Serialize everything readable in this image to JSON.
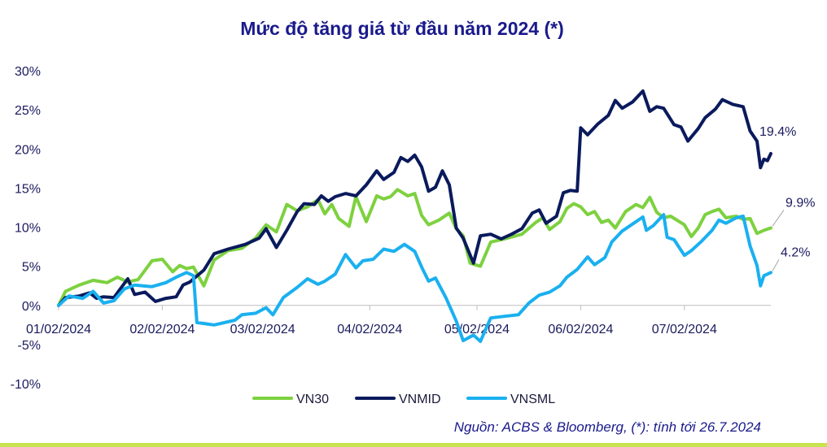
{
  "chart_data": {
    "type": "line",
    "title": "Mức độ tăng giá từ đầu năm 2024 (*)",
    "source": "Nguồn:  ACBS & Bloomberg, (*): tính tới 26.7.2024",
    "x_start": "2024-01-02",
    "x_end": "2024-07-26",
    "xticks": [
      {
        "date": "2024-01-02",
        "label": "01/02/2024"
      },
      {
        "date": "2024-02-01",
        "label": "02/02/2024"
      },
      {
        "date": "2024-03-01",
        "label": "03/02/2024"
      },
      {
        "date": "2024-04-01",
        "label": "04/02/2024"
      },
      {
        "date": "2024-05-02",
        "label": "05/02/2024"
      },
      {
        "date": "2024-06-01",
        "label": "06/02/2024"
      },
      {
        "date": "2024-07-01",
        "label": "07/02/2024"
      }
    ],
    "yticks": [
      {
        "value": 30,
        "label": "30%"
      },
      {
        "value": 25,
        "label": "25%"
      },
      {
        "value": 20,
        "label": "20%"
      },
      {
        "value": 15,
        "label": "15%"
      },
      {
        "value": 10,
        "label": "10%"
      },
      {
        "value": 5,
        "label": "5%"
      },
      {
        "value": 0,
        "label": "0%"
      },
      {
        "value": -5,
        "label": "-5%"
      },
      {
        "value": -10,
        "label": "-10%"
      }
    ],
    "ylim": [
      -10,
      30
    ],
    "legend_position": "bottom",
    "grid": false,
    "series": [
      {
        "name": "VN30",
        "color": "#7dd13f",
        "end_label": "9.9%",
        "points": [
          [
            "2024-01-02",
            0
          ],
          [
            "2024-01-04",
            1.8
          ],
          [
            "2024-01-08",
            2.6
          ],
          [
            "2024-01-12",
            3.2
          ],
          [
            "2024-01-16",
            2.9
          ],
          [
            "2024-01-19",
            3.6
          ],
          [
            "2024-01-22",
            3.0
          ],
          [
            "2024-01-25",
            3.3
          ],
          [
            "2024-01-29",
            5.7
          ],
          [
            "2024-02-01",
            5.9
          ],
          [
            "2024-02-04",
            4.3
          ],
          [
            "2024-02-06",
            5.1
          ],
          [
            "2024-02-08",
            4.7
          ],
          [
            "2024-02-10",
            4.9
          ],
          [
            "2024-02-13",
            2.5
          ],
          [
            "2024-02-16",
            5.8
          ],
          [
            "2024-02-20",
            7.0
          ],
          [
            "2024-02-24",
            7.3
          ],
          [
            "2024-02-28",
            8.6
          ],
          [
            "2024-03-02",
            10.3
          ],
          [
            "2024-03-05",
            9.4
          ],
          [
            "2024-03-08",
            12.9
          ],
          [
            "2024-03-11",
            12.1
          ],
          [
            "2024-03-14",
            12.6
          ],
          [
            "2024-03-17",
            13.5
          ],
          [
            "2024-03-19",
            11.7
          ],
          [
            "2024-03-21",
            12.9
          ],
          [
            "2024-03-23",
            11.1
          ],
          [
            "2024-03-26",
            10.1
          ],
          [
            "2024-03-28",
            13.9
          ],
          [
            "2024-03-31",
            10.7
          ],
          [
            "2024-04-03",
            14.0
          ],
          [
            "2024-04-05",
            13.6
          ],
          [
            "2024-04-07",
            13.9
          ],
          [
            "2024-04-09",
            14.8
          ],
          [
            "2024-04-12",
            14.0
          ],
          [
            "2024-04-14",
            14.3
          ],
          [
            "2024-04-16",
            11.5
          ],
          [
            "2024-04-18",
            10.3
          ],
          [
            "2024-04-21",
            10.9
          ],
          [
            "2024-04-24",
            11.8
          ],
          [
            "2024-04-26",
            9.8
          ],
          [
            "2024-04-28",
            8.9
          ],
          [
            "2024-04-30",
            5.4
          ],
          [
            "2024-05-03",
            5.0
          ],
          [
            "2024-05-06",
            8.1
          ],
          [
            "2024-05-10",
            8.5
          ],
          [
            "2024-05-15",
            9.1
          ],
          [
            "2024-05-19",
            10.6
          ],
          [
            "2024-05-21",
            11.2
          ],
          [
            "2024-05-23",
            9.7
          ],
          [
            "2024-05-26",
            10.7
          ],
          [
            "2024-05-28",
            12.4
          ],
          [
            "2024-05-30",
            13.0
          ],
          [
            "2024-06-01",
            12.6
          ],
          [
            "2024-06-03",
            11.6
          ],
          [
            "2024-06-05",
            12.0
          ],
          [
            "2024-06-07",
            10.6
          ],
          [
            "2024-06-09",
            10.9
          ],
          [
            "2024-06-11",
            9.9
          ],
          [
            "2024-06-14",
            12.0
          ],
          [
            "2024-06-17",
            12.9
          ],
          [
            "2024-06-19",
            12.5
          ],
          [
            "2024-06-21",
            13.8
          ],
          [
            "2024-06-23",
            11.9
          ],
          [
            "2024-06-25",
            11.2
          ],
          [
            "2024-06-27",
            11.4
          ],
          [
            "2024-07-01",
            10.3
          ],
          [
            "2024-07-03",
            8.8
          ],
          [
            "2024-07-05",
            9.9
          ],
          [
            "2024-07-07",
            11.6
          ],
          [
            "2024-07-09",
            12.0
          ],
          [
            "2024-07-11",
            12.3
          ],
          [
            "2024-07-13",
            11.2
          ],
          [
            "2024-07-16",
            11.4
          ],
          [
            "2024-07-18",
            11.0
          ],
          [
            "2024-07-20",
            11.1
          ],
          [
            "2024-07-22",
            9.2
          ],
          [
            "2024-07-24",
            9.6
          ],
          [
            "2024-07-26",
            9.9
          ]
        ]
      },
      {
        "name": "VNMID",
        "color": "#0a1a5c",
        "end_label": "19.4%",
        "points": [
          [
            "2024-01-02",
            0
          ],
          [
            "2024-01-04",
            1.0
          ],
          [
            "2024-01-08",
            1.2
          ],
          [
            "2024-01-11",
            1.6
          ],
          [
            "2024-01-13",
            0.9
          ],
          [
            "2024-01-15",
            1.1
          ],
          [
            "2024-01-18",
            1.0
          ],
          [
            "2024-01-22",
            3.4
          ],
          [
            "2024-01-24",
            1.4
          ],
          [
            "2024-01-27",
            1.7
          ],
          [
            "2024-01-30",
            0.5
          ],
          [
            "2024-02-02",
            0.9
          ],
          [
            "2024-02-05",
            1.1
          ],
          [
            "2024-02-07",
            2.6
          ],
          [
            "2024-02-09",
            3.0
          ],
          [
            "2024-02-13",
            4.5
          ],
          [
            "2024-02-16",
            6.6
          ],
          [
            "2024-02-20",
            7.2
          ],
          [
            "2024-02-25",
            7.8
          ],
          [
            "2024-02-29",
            8.6
          ],
          [
            "2024-03-02",
            9.8
          ],
          [
            "2024-03-05",
            7.4
          ],
          [
            "2024-03-08",
            9.6
          ],
          [
            "2024-03-11",
            12.0
          ],
          [
            "2024-03-13",
            13.0
          ],
          [
            "2024-03-16",
            12.9
          ],
          [
            "2024-03-18",
            14.0
          ],
          [
            "2024-03-20",
            13.3
          ],
          [
            "2024-03-22",
            13.9
          ],
          [
            "2024-03-25",
            14.3
          ],
          [
            "2024-03-28",
            14.0
          ],
          [
            "2024-03-31",
            15.4
          ],
          [
            "2024-04-03",
            17.2
          ],
          [
            "2024-04-05",
            16.1
          ],
          [
            "2024-04-08",
            17.0
          ],
          [
            "2024-04-10",
            18.9
          ],
          [
            "2024-04-12",
            18.4
          ],
          [
            "2024-04-14",
            19.2
          ],
          [
            "2024-04-16",
            17.7
          ],
          [
            "2024-04-18",
            14.6
          ],
          [
            "2024-04-20",
            15.1
          ],
          [
            "2024-04-22",
            17.2
          ],
          [
            "2024-04-24",
            15.4
          ],
          [
            "2024-04-26",
            9.9
          ],
          [
            "2024-04-28",
            8.6
          ],
          [
            "2024-05-01",
            5.4
          ],
          [
            "2024-05-03",
            8.9
          ],
          [
            "2024-05-06",
            9.1
          ],
          [
            "2024-05-09",
            8.5
          ],
          [
            "2024-05-12",
            9.1
          ],
          [
            "2024-05-15",
            9.8
          ],
          [
            "2024-05-18",
            11.8
          ],
          [
            "2024-05-20",
            12.2
          ],
          [
            "2024-05-22",
            10.5
          ],
          [
            "2024-05-25",
            11.4
          ],
          [
            "2024-05-27",
            14.4
          ],
          [
            "2024-05-29",
            14.7
          ],
          [
            "2024-05-31",
            14.6
          ],
          [
            "2024-06-01",
            22.7
          ],
          [
            "2024-06-03",
            21.8
          ],
          [
            "2024-06-06",
            23.2
          ],
          [
            "2024-06-09",
            24.3
          ],
          [
            "2024-06-11",
            26.2
          ],
          [
            "2024-06-13",
            25.2
          ],
          [
            "2024-06-16",
            26.0
          ],
          [
            "2024-06-19",
            27.4
          ],
          [
            "2024-06-21",
            24.8
          ],
          [
            "2024-06-23",
            25.4
          ],
          [
            "2024-06-25",
            25.2
          ],
          [
            "2024-06-28",
            23.1
          ],
          [
            "2024-06-30",
            22.8
          ],
          [
            "2024-07-02",
            21.0
          ],
          [
            "2024-07-05",
            22.6
          ],
          [
            "2024-07-07",
            24.0
          ],
          [
            "2024-07-10",
            25.1
          ],
          [
            "2024-07-12",
            26.3
          ],
          [
            "2024-07-15",
            25.7
          ],
          [
            "2024-07-18",
            25.4
          ],
          [
            "2024-07-20",
            22.3
          ],
          [
            "2024-07-22",
            21.0
          ],
          [
            "2024-07-23",
            17.6
          ],
          [
            "2024-07-24",
            18.7
          ],
          [
            "2024-07-25",
            18.5
          ],
          [
            "2024-07-26",
            19.4
          ]
        ]
      },
      {
        "name": "VNSML",
        "color": "#1ab0f0",
        "end_label": "4.2%",
        "points": [
          [
            "2024-01-02",
            0
          ],
          [
            "2024-01-05",
            1.2
          ],
          [
            "2024-01-09",
            0.9
          ],
          [
            "2024-01-12",
            1.8
          ],
          [
            "2024-01-15",
            0.3
          ],
          [
            "2024-01-18",
            0.6
          ],
          [
            "2024-01-21",
            2.1
          ],
          [
            "2024-01-24",
            2.6
          ],
          [
            "2024-01-29",
            2.4
          ],
          [
            "2024-02-02",
            2.9
          ],
          [
            "2024-02-05",
            3.6
          ],
          [
            "2024-02-08",
            4.2
          ],
          [
            "2024-02-10",
            3.8
          ],
          [
            "2024-02-11",
            -2.2
          ],
          [
            "2024-02-16",
            -2.5
          ],
          [
            "2024-02-22",
            -1.9
          ],
          [
            "2024-02-24",
            -1.2
          ],
          [
            "2024-02-28",
            -1.0
          ],
          [
            "2024-03-02",
            -0.3
          ],
          [
            "2024-03-04",
            -1.2
          ],
          [
            "2024-03-07",
            1.0
          ],
          [
            "2024-03-11",
            2.3
          ],
          [
            "2024-03-14",
            3.4
          ],
          [
            "2024-03-17",
            2.7
          ],
          [
            "2024-03-19",
            3.1
          ],
          [
            "2024-03-22",
            4.0
          ],
          [
            "2024-03-25",
            6.5
          ],
          [
            "2024-03-28",
            4.8
          ],
          [
            "2024-03-30",
            5.7
          ],
          [
            "2024-04-02",
            5.9
          ],
          [
            "2024-04-05",
            7.2
          ],
          [
            "2024-04-08",
            6.9
          ],
          [
            "2024-04-11",
            7.8
          ],
          [
            "2024-04-14",
            6.9
          ],
          [
            "2024-04-16",
            4.9
          ],
          [
            "2024-04-18",
            3.1
          ],
          [
            "2024-04-20",
            3.5
          ],
          [
            "2024-04-23",
            1.0
          ],
          [
            "2024-04-26",
            -2.0
          ],
          [
            "2024-04-28",
            -4.5
          ],
          [
            "2024-05-01",
            -3.8
          ],
          [
            "2024-05-03",
            -4.6
          ],
          [
            "2024-05-06",
            -1.6
          ],
          [
            "2024-05-10",
            -1.4
          ],
          [
            "2024-05-14",
            -1.2
          ],
          [
            "2024-05-17",
            0.3
          ],
          [
            "2024-05-20",
            1.3
          ],
          [
            "2024-05-23",
            1.7
          ],
          [
            "2024-05-26",
            2.5
          ],
          [
            "2024-05-28",
            3.6
          ],
          [
            "2024-05-31",
            4.6
          ],
          [
            "2024-06-03",
            6.2
          ],
          [
            "2024-06-05",
            5.2
          ],
          [
            "2024-06-08",
            6.1
          ],
          [
            "2024-06-10",
            8.1
          ],
          [
            "2024-06-13",
            9.5
          ],
          [
            "2024-06-17",
            10.7
          ],
          [
            "2024-06-19",
            11.3
          ],
          [
            "2024-06-20",
            9.6
          ],
          [
            "2024-06-22",
            10.2
          ],
          [
            "2024-06-25",
            11.6
          ],
          [
            "2024-06-26",
            8.7
          ],
          [
            "2024-06-28",
            8.4
          ],
          [
            "2024-07-01",
            6.4
          ],
          [
            "2024-07-03",
            7.0
          ],
          [
            "2024-07-06",
            8.2
          ],
          [
            "2024-07-09",
            9.6
          ],
          [
            "2024-07-11",
            10.9
          ],
          [
            "2024-07-13",
            10.5
          ],
          [
            "2024-07-16",
            11.2
          ],
          [
            "2024-07-18",
            11.4
          ],
          [
            "2024-07-20",
            7.6
          ],
          [
            "2024-07-22",
            5.1
          ],
          [
            "2024-07-23",
            2.5
          ],
          [
            "2024-07-24",
            3.8
          ],
          [
            "2024-07-25",
            4.0
          ],
          [
            "2024-07-26",
            4.2
          ]
        ]
      }
    ]
  }
}
